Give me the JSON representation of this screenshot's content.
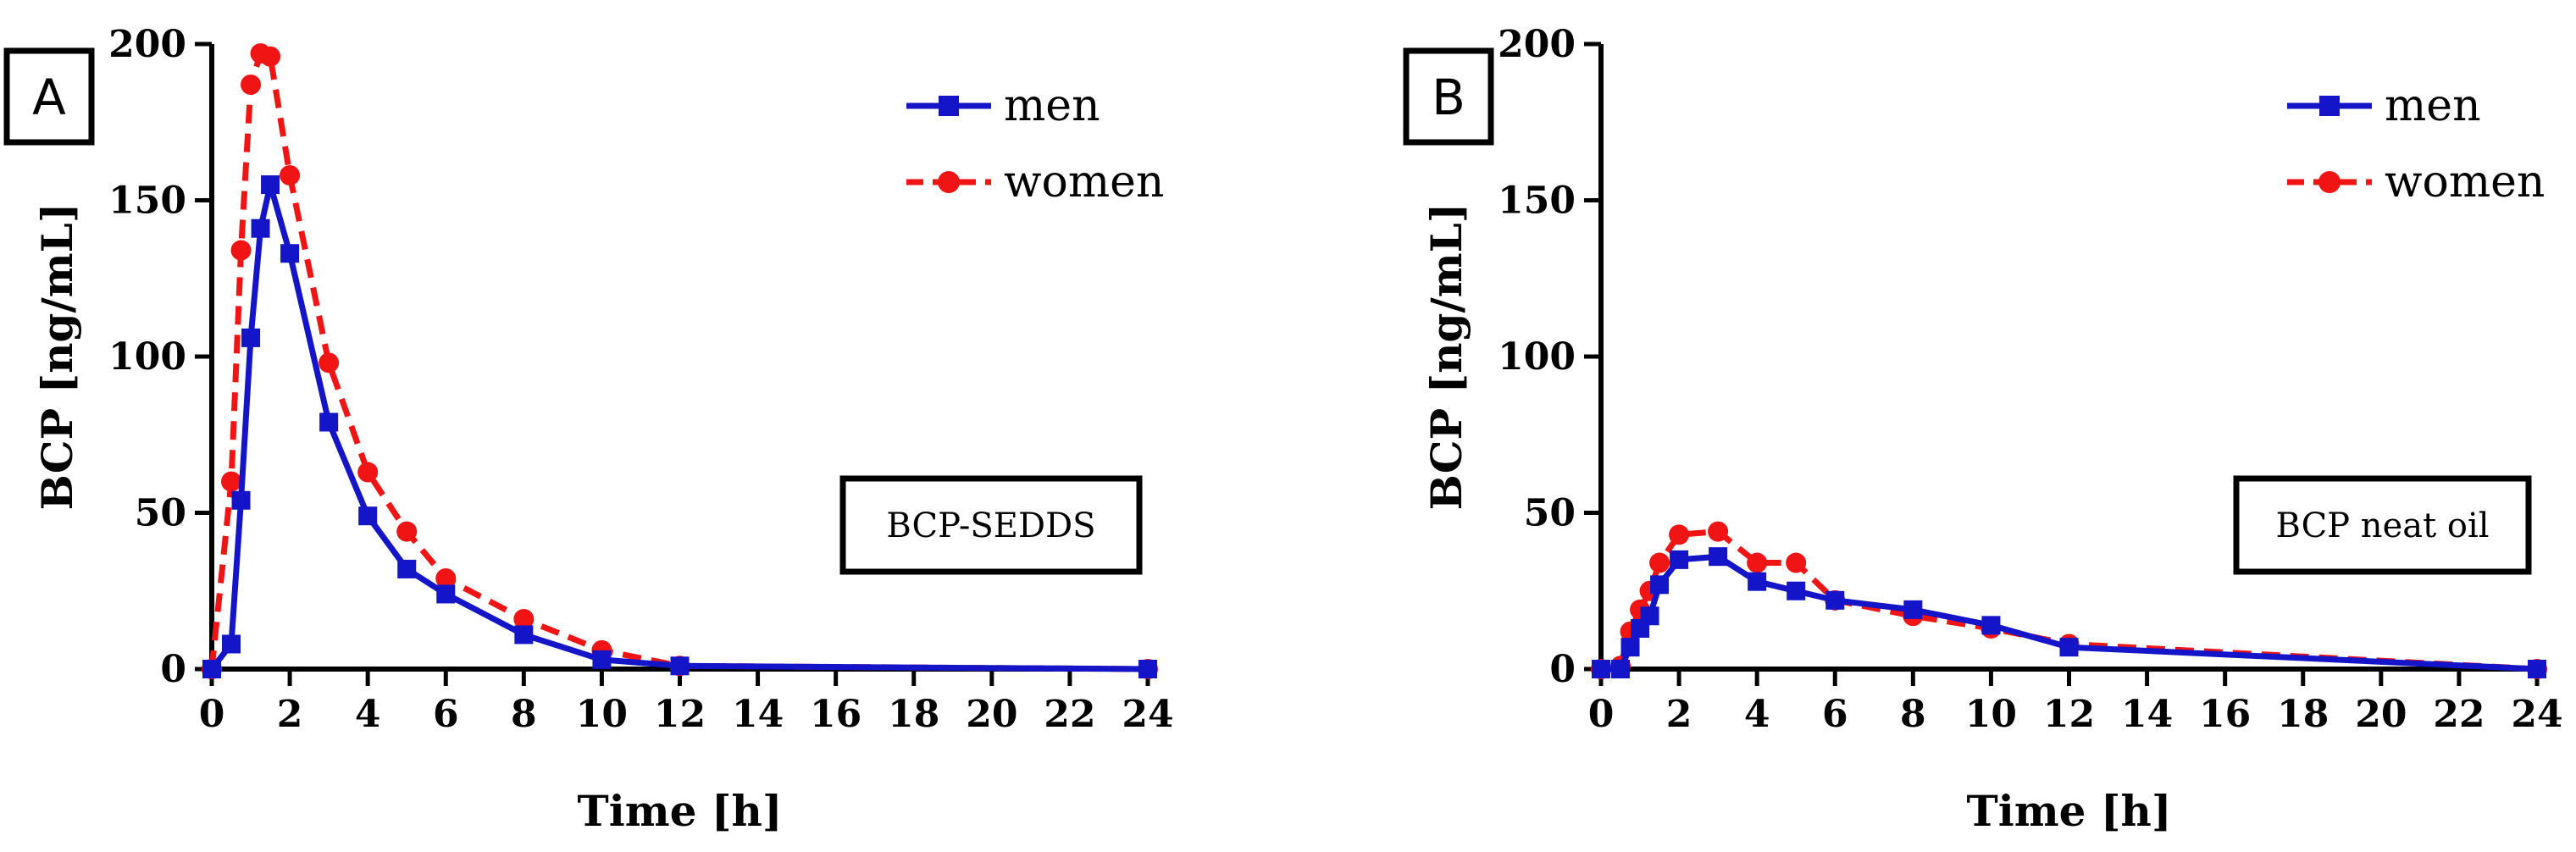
{
  "chart_data": [
    {
      "type": "line",
      "panel_label": "A",
      "annotation": "BCP-SEDDS",
      "xlabel": "Time [h]",
      "ylabel": "BCP [ng/mL]",
      "xlim": [
        0,
        24
      ],
      "ylim": [
        0,
        200
      ],
      "xticks": [
        0,
        2,
        4,
        6,
        8,
        10,
        12,
        14,
        16,
        18,
        20,
        22,
        24
      ],
      "yticks": [
        0,
        50,
        100,
        150,
        200
      ],
      "legend_position": "top-right",
      "series": [
        {
          "name": "men",
          "color": "#1414c8",
          "marker": "square",
          "line": "solid",
          "x": [
            0,
            0.5,
            0.75,
            1,
            1.25,
            1.5,
            2,
            3,
            4,
            5,
            6,
            8,
            10,
            12,
            24
          ],
          "y": [
            0,
            8,
            54,
            106,
            141,
            155,
            133,
            79,
            49,
            32,
            24,
            11,
            3,
            1,
            0
          ]
        },
        {
          "name": "women",
          "color": "#f01414",
          "marker": "circle",
          "line": "dashed",
          "x": [
            0,
            0.5,
            0.75,
            1,
            1.25,
            1.5,
            2,
            3,
            4,
            5,
            6,
            8,
            10,
            12,
            24
          ],
          "y": [
            0,
            60,
            134,
            187,
            197,
            196,
            158,
            98,
            63,
            44,
            29,
            16,
            6,
            1,
            0
          ]
        }
      ]
    },
    {
      "type": "line",
      "panel_label": "B",
      "annotation": "BCP neat oil",
      "xlabel": "Time [h]",
      "ylabel": "BCP [ng/mL]",
      "xlim": [
        0,
        24
      ],
      "ylim": [
        0,
        200
      ],
      "xticks": [
        0,
        2,
        4,
        6,
        8,
        10,
        12,
        14,
        16,
        18,
        20,
        22,
        24
      ],
      "yticks": [
        0,
        50,
        100,
        150,
        200
      ],
      "legend_position": "top-right",
      "series": [
        {
          "name": "men",
          "color": "#1414c8",
          "marker": "square",
          "line": "solid",
          "x": [
            0,
            0.5,
            0.75,
            1,
            1.25,
            1.5,
            2,
            3,
            4,
            5,
            6,
            8,
            10,
            12,
            24
          ],
          "y": [
            0,
            0,
            7,
            13,
            17,
            27,
            35,
            36,
            28,
            25,
            22,
            19,
            14,
            7,
            0
          ]
        },
        {
          "name": "women",
          "color": "#f01414",
          "marker": "circle",
          "line": "dashed",
          "x": [
            0,
            0.5,
            0.75,
            1,
            1.25,
            1.5,
            2,
            3,
            4,
            5,
            6,
            8,
            10,
            12,
            24
          ],
          "y": [
            0,
            1,
            12,
            19,
            25,
            34,
            43,
            44,
            34,
            34,
            22,
            17,
            13,
            8,
            0
          ]
        }
      ]
    }
  ]
}
